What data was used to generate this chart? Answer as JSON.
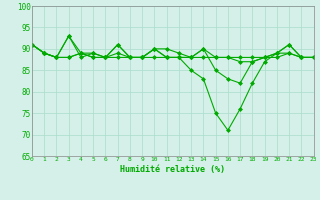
{
  "x_values": [
    0,
    1,
    2,
    3,
    4,
    5,
    6,
    7,
    8,
    9,
    10,
    11,
    12,
    13,
    14,
    15,
    16,
    17,
    18,
    19,
    20,
    21,
    22,
    23
  ],
  "line1": [
    91,
    89,
    88,
    93,
    89,
    89,
    88,
    91,
    88,
    88,
    90,
    90,
    89,
    88,
    90,
    85,
    83,
    82,
    87,
    88,
    89,
    91,
    88,
    88
  ],
  "line2": [
    91,
    89,
    88,
    88,
    89,
    88,
    88,
    88,
    88,
    88,
    88,
    88,
    88,
    88,
    88,
    88,
    88,
    88,
    88,
    88,
    88,
    89,
    88,
    88
  ],
  "line3": [
    91,
    89,
    88,
    93,
    88,
    89,
    88,
    91,
    88,
    88,
    90,
    88,
    88,
    85,
    83,
    75,
    71,
    76,
    82,
    87,
    89,
    91,
    88,
    88
  ],
  "line4": [
    91,
    89,
    88,
    88,
    89,
    88,
    88,
    89,
    88,
    88,
    90,
    88,
    88,
    88,
    90,
    88,
    88,
    87,
    87,
    88,
    89,
    89,
    88,
    88
  ],
  "line_color": "#00aa00",
  "bg_color": "#d4f0e8",
  "grid_color": "#aaddcc",
  "xlabel": "Humidité relative (%)",
  "ylim": [
    65,
    100
  ],
  "xlim": [
    0,
    23
  ],
  "yticks": [
    65,
    70,
    75,
    80,
    85,
    90,
    95,
    100
  ],
  "xticks": [
    0,
    1,
    2,
    3,
    4,
    5,
    6,
    7,
    8,
    9,
    10,
    11,
    12,
    13,
    14,
    15,
    16,
    17,
    18,
    19,
    20,
    21,
    22,
    23
  ]
}
